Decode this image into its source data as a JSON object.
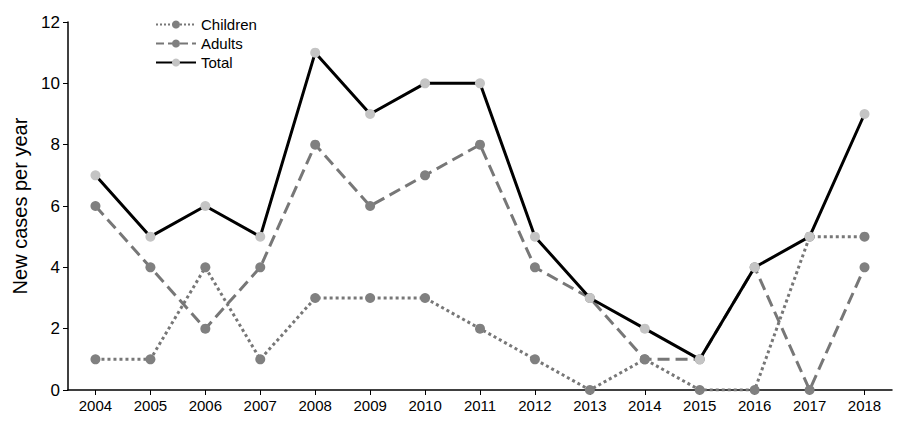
{
  "chart_data": {
    "type": "line",
    "y_label": "New cases per year",
    "categories": [
      "2004",
      "2005",
      "2006",
      "2007",
      "2008",
      "2009",
      "2010",
      "2011",
      "2012",
      "2013",
      "2014",
      "2015",
      "2016",
      "2017",
      "2018"
    ],
    "series": [
      {
        "name": "Children",
        "color": "#777777",
        "line_style": "dotted",
        "marker": "circle",
        "values": [
          1,
          1,
          4,
          1,
          3,
          3,
          3,
          2,
          1,
          0,
          1,
          0,
          0,
          5,
          5
        ]
      },
      {
        "name": "Adults",
        "color": "#777777",
        "line_style": "dashed",
        "marker": "circle",
        "values": [
          6,
          4,
          2,
          4,
          8,
          6,
          7,
          8,
          4,
          3,
          1,
          1,
          4,
          0,
          4
        ]
      },
      {
        "name": "Total",
        "color": "#000000",
        "line_style": "solid",
        "marker": "circle",
        "values": [
          7,
          5,
          6,
          5,
          11,
          9,
          10,
          10,
          5,
          3,
          2,
          1,
          4,
          5,
          9
        ]
      }
    ],
    "ylim": [
      0,
      12
    ],
    "yticks": [
      0,
      2,
      4,
      6,
      8,
      10,
      12
    ],
    "grid": false,
    "legend": "top-left"
  }
}
